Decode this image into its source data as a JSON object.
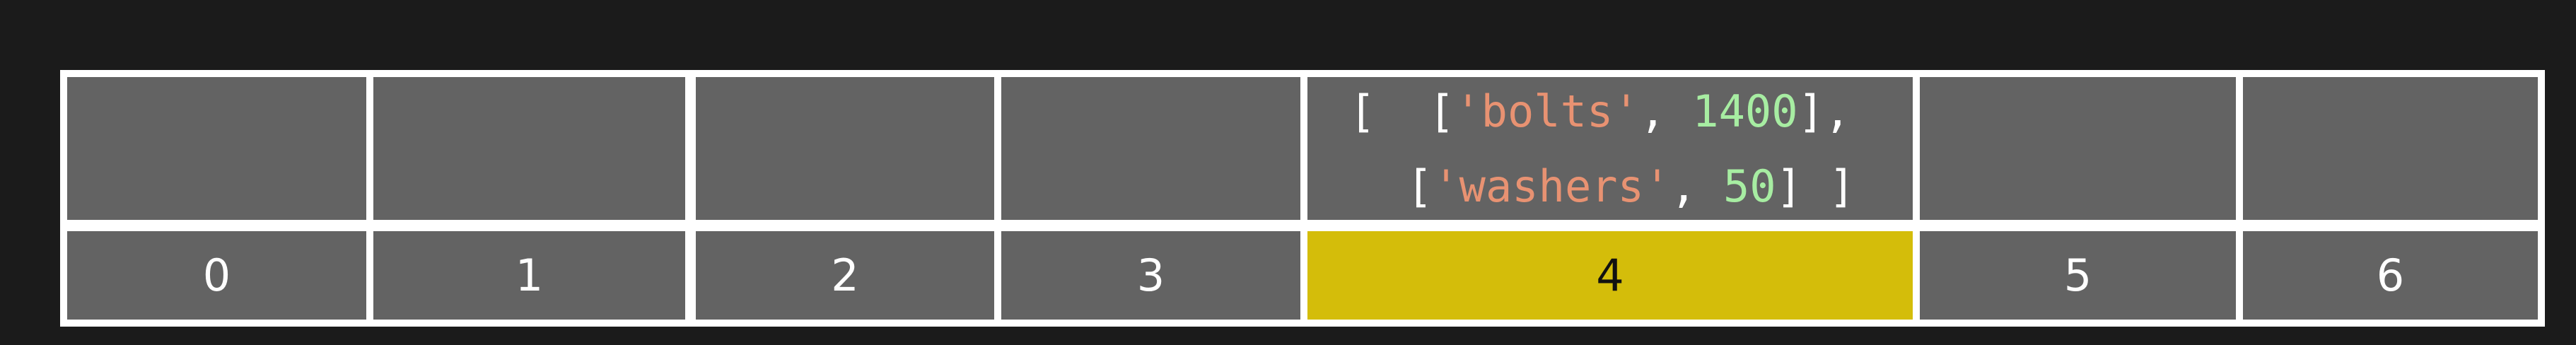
{
  "colors": {
    "background": "#1b1b1b",
    "cell": "#636363",
    "grid": "#ffffff",
    "highlight": "#d4bd0a",
    "string_token": "#e89272",
    "number_token": "#a7eda2"
  },
  "table": {
    "indices": [
      "0",
      "1",
      "2",
      "3",
      "4",
      "5",
      "6"
    ],
    "highlighted_index": "4",
    "bucket_4": {
      "line1": {
        "open_outer": "[",
        "open_inner": "[",
        "key": "'bolts'",
        "sep": ",",
        "value": "1400",
        "close_inner": "],"
      },
      "line2": {
        "open_inner": "[",
        "key": "'washers'",
        "sep": ",",
        "value": "50",
        "close_inner": "]",
        "close_outer": "]"
      }
    }
  }
}
